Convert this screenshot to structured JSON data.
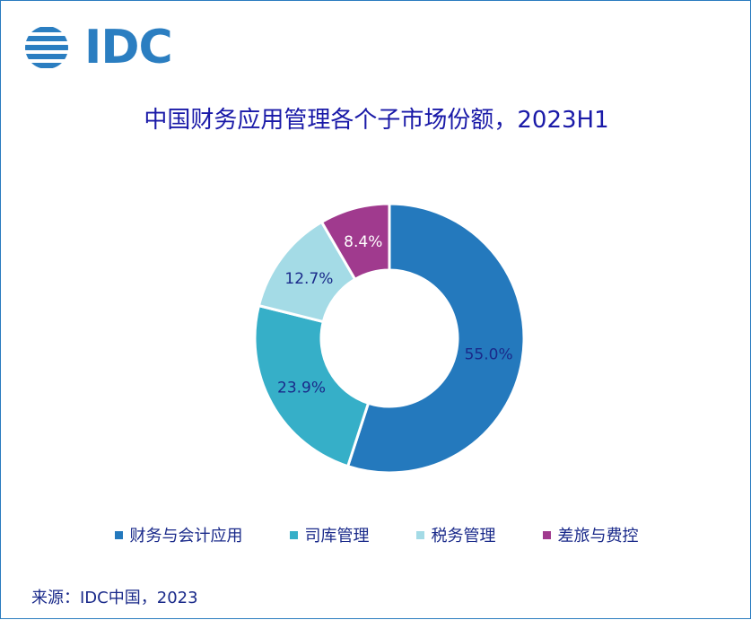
{
  "logo": {
    "text": "IDC"
  },
  "chart_data": {
    "type": "pie",
    "title": "中国财务应用管理各个子市场份额，2023H1",
    "categories": [
      "财务与会计应用",
      "司库管理",
      "税务管理",
      "差旅与费控"
    ],
    "values": [
      55.0,
      23.9,
      12.7,
      8.4
    ],
    "labels": [
      "55.0%",
      "23.9%",
      "12.7%",
      "8.4%"
    ],
    "colors": [
      "#2479bd",
      "#36afc8",
      "#a4dbe6",
      "#a03a8e"
    ],
    "label_colors": [
      "#1a2a8a",
      "#1a2a8a",
      "#1a2a8a",
      "#ffffff"
    ],
    "legend_position": "bottom",
    "donut": true
  },
  "source": "来源：IDC中国，2023"
}
